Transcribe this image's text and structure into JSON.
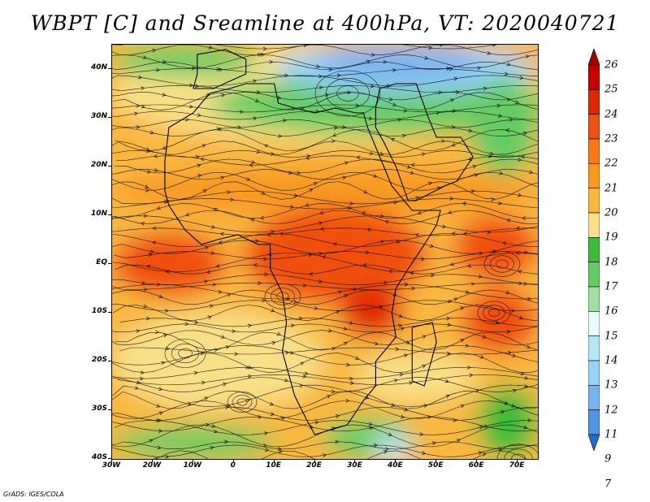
{
  "title": "WBPT [C] and Sreamline at 400hPa, VT: 2020040721",
  "credit": "GrADS: IGES/COLA",
  "map": {
    "region": "Africa and surrounding oceans",
    "lon_range": [
      -30,
      75
    ],
    "lat_range": [
      -40,
      45
    ],
    "lat_labels": [
      {
        "lat": 40,
        "text": "40N"
      },
      {
        "lat": 30,
        "text": "30N"
      },
      {
        "lat": 20,
        "text": "20N"
      },
      {
        "lat": 10,
        "text": "10N"
      },
      {
        "lat": 0,
        "text": "EQ"
      },
      {
        "lat": -10,
        "text": "10S"
      },
      {
        "lat": -20,
        "text": "20S"
      },
      {
        "lat": -30,
        "text": "30S"
      },
      {
        "lat": -40,
        "text": "40S"
      }
    ],
    "lon_labels": [
      {
        "lon": -30,
        "text": "30W"
      },
      {
        "lon": -20,
        "text": "20W"
      },
      {
        "lon": -10,
        "text": "10W"
      },
      {
        "lon": 0,
        "text": "0"
      },
      {
        "lon": 10,
        "text": "10E"
      },
      {
        "lon": 20,
        "text": "20E"
      },
      {
        "lon": 30,
        "text": "30E"
      },
      {
        "lon": 40,
        "text": "40E"
      },
      {
        "lon": 50,
        "text": "50E"
      },
      {
        "lon": 60,
        "text": "60E"
      },
      {
        "lon": 70,
        "text": "70E"
      }
    ],
    "overlay": "streamlines with arrows",
    "shading_variable": "wet-bulb potential temperature"
  },
  "colorbar": {
    "labels": [
      "26",
      "25",
      "24",
      "23",
      "22",
      "21",
      "20",
      "19",
      "18",
      "17",
      "16",
      "15",
      "14",
      "13",
      "12",
      "11",
      "9",
      "7"
    ],
    "colors": [
      "#a00000",
      "#c80000",
      "#e02800",
      "#f05010",
      "#f87818",
      "#f89a20",
      "#f8b840",
      "#f8e088",
      "#3cbc3c",
      "#64cc64",
      "#a0e0a0",
      "#e8fcfc",
      "#b4e8f8",
      "#96d2fa",
      "#78b4f0",
      "#5096e6",
      "#1e6ed8"
    ],
    "end_arrows": true
  }
}
